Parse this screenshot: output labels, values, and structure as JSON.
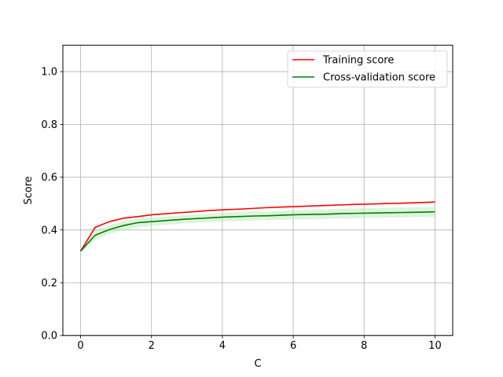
{
  "chart_data": {
    "type": "line",
    "title": "",
    "xlabel": "C",
    "ylabel": "Score",
    "xlim": [
      -0.5,
      10.5
    ],
    "ylim": [
      0.0,
      1.1
    ],
    "xticks": [
      0,
      2,
      4,
      6,
      8,
      10
    ],
    "yticks": [
      0.0,
      0.2,
      0.4,
      0.6,
      0.8,
      1.0
    ],
    "xtick_labels": [
      "0",
      "2",
      "4",
      "6",
      "8",
      "10"
    ],
    "ytick_labels": [
      "0.0",
      "0.2",
      "0.4",
      "0.6",
      "0.8",
      "1.0"
    ],
    "grid": true,
    "legend_position": "top-right",
    "x": [
      0.0,
      0.41,
      0.82,
      1.22,
      1.63,
      2.04,
      2.45,
      2.86,
      3.27,
      3.67,
      4.08,
      4.49,
      4.9,
      5.31,
      5.71,
      6.12,
      6.53,
      6.94,
      7.35,
      7.76,
      8.16,
      8.57,
      8.98,
      9.39,
      9.8,
      10.0
    ],
    "series": [
      {
        "name": "Training score",
        "color": "#ff0000",
        "values": [
          0.32,
          0.41,
          0.432,
          0.445,
          0.451,
          0.458,
          0.462,
          0.466,
          0.47,
          0.474,
          0.477,
          0.479,
          0.482,
          0.485,
          0.487,
          0.489,
          0.491,
          0.493,
          0.495,
          0.497,
          0.498,
          0.5,
          0.501,
          0.503,
          0.505,
          0.506
        ],
        "band": null
      },
      {
        "name": "Cross-validation score",
        "color": "#008000",
        "band_color": "#b3e6b3",
        "values": [
          0.32,
          0.38,
          0.402,
          0.417,
          0.428,
          0.432,
          0.436,
          0.44,
          0.443,
          0.446,
          0.449,
          0.451,
          0.453,
          0.454,
          0.456,
          0.458,
          0.459,
          0.46,
          0.462,
          0.463,
          0.464,
          0.465,
          0.466,
          0.467,
          0.468,
          0.469
        ],
        "band": {
          "lower": [
            0.312,
            0.362,
            0.385,
            0.4,
            0.41,
            0.416,
            0.42,
            0.424,
            0.427,
            0.43,
            0.432,
            0.434,
            0.436,
            0.438,
            0.439,
            0.44,
            0.441,
            0.442,
            0.443,
            0.444,
            0.445,
            0.446,
            0.447,
            0.448,
            0.449,
            0.45
          ],
          "upper": [
            0.328,
            0.398,
            0.419,
            0.434,
            0.446,
            0.448,
            0.452,
            0.456,
            0.459,
            0.462,
            0.466,
            0.468,
            0.47,
            0.47,
            0.473,
            0.476,
            0.477,
            0.478,
            0.481,
            0.482,
            0.483,
            0.484,
            0.485,
            0.486,
            0.487,
            0.488
          ]
        }
      }
    ]
  }
}
